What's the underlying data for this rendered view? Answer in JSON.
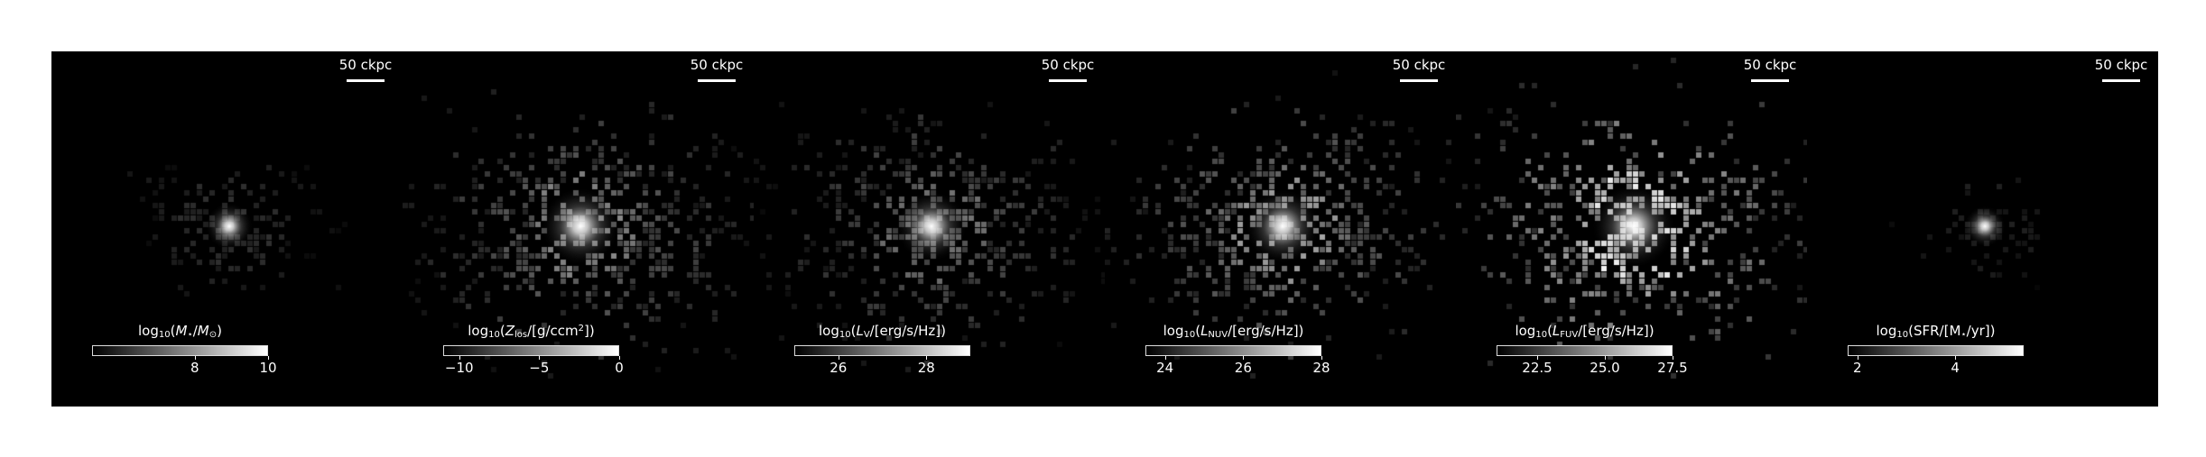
{
  "panels": [
    {
      "scalebar_label": "50 ckpc",
      "colorbar": {
        "label_parts": [
          {
            "t": "log"
          },
          {
            "t": "10",
            "sub": true
          },
          {
            "t": "("
          },
          {
            "t": "M",
            "i": true
          },
          {
            "t": "⋆",
            "sub": true
          },
          {
            "t": "/"
          },
          {
            "t": "M",
            "i": true
          },
          {
            "t": "⊙",
            "sub": true
          },
          {
            "t": ")"
          }
        ],
        "range": [
          5.2,
          10.0
        ],
        "ticks": [
          {
            "value": 8,
            "label": "8"
          },
          {
            "value": 10,
            "label": "10"
          }
        ]
      },
      "image": {
        "core": 1.0,
        "halo_size": 0.38,
        "scatter_count": 160,
        "scatter_spread": 0.34,
        "scatter_brightness": 0.18,
        "seed": 11
      }
    },
    {
      "scalebar_label": "50 ckpc",
      "colorbar": {
        "label_parts": [
          {
            "t": "log"
          },
          {
            "t": "10",
            "sub": true
          },
          {
            "t": "("
          },
          {
            "t": "Z",
            "i": true
          },
          {
            "t": "los",
            "sub": true
          },
          {
            "t": "/[g/ccm"
          },
          {
            "t": "2",
            "sup": true
          },
          {
            "t": "])"
          }
        ],
        "range": [
          -11.0,
          0.0
        ],
        "ticks": [
          {
            "value": -10,
            "label": "−10"
          },
          {
            "value": -5,
            "label": "−5"
          },
          {
            "value": 0,
            "label": "0"
          }
        ]
      },
      "image": {
        "core": 1.0,
        "halo_size": 0.9,
        "scatter_count": 520,
        "scatter_spread": 0.62,
        "scatter_brightness": 0.5,
        "seed": 23
      }
    },
    {
      "scalebar_label": "50 ckpc",
      "colorbar": {
        "label_parts": [
          {
            "t": "log"
          },
          {
            "t": "10",
            "sub": true
          },
          {
            "t": "("
          },
          {
            "t": "L",
            "i": true
          },
          {
            "t": "V",
            "sub": true
          },
          {
            "t": "/[erg/s/Hz])"
          }
        ],
        "range": [
          25.0,
          29.0
        ],
        "ticks": [
          {
            "value": 26,
            "label": "26"
          },
          {
            "value": 28,
            "label": "28"
          }
        ]
      },
      "image": {
        "core": 1.0,
        "halo_size": 0.78,
        "scatter_count": 460,
        "scatter_spread": 0.6,
        "scatter_brightness": 0.42,
        "seed": 37
      }
    },
    {
      "scalebar_label": "50 ckpc",
      "colorbar": {
        "label_parts": [
          {
            "t": "log"
          },
          {
            "t": "10",
            "sub": true
          },
          {
            "t": "("
          },
          {
            "t": "L",
            "i": true
          },
          {
            "t": "NUV",
            "sub": true
          },
          {
            "t": "/[erg/s/Hz])"
          }
        ],
        "range": [
          23.5,
          28.0
        ],
        "ticks": [
          {
            "value": 24,
            "label": "24"
          },
          {
            "value": 26,
            "label": "26"
          },
          {
            "value": 28,
            "label": "28"
          }
        ]
      },
      "image": {
        "core": 1.0,
        "halo_size": 0.85,
        "scatter_count": 500,
        "scatter_spread": 0.6,
        "scatter_brightness": 0.6,
        "seed": 53
      }
    },
    {
      "scalebar_label": "50 ckpc",
      "colorbar": {
        "label_parts": [
          {
            "t": "log"
          },
          {
            "t": "10",
            "sub": true
          },
          {
            "t": "("
          },
          {
            "t": "L",
            "i": true
          },
          {
            "t": "FUV",
            "sub": true
          },
          {
            "t": "/[erg/s/Hz])"
          }
        ],
        "range": [
          21.0,
          27.5
        ],
        "ticks": [
          {
            "value": 22.5,
            "label": "22.5"
          },
          {
            "value": 25.0,
            "label": "25.0"
          },
          {
            "value": 27.5,
            "label": "27.5"
          }
        ]
      },
      "image": {
        "core": 1.0,
        "halo_size": 1.0,
        "scatter_count": 520,
        "scatter_spread": 0.62,
        "scatter_brightness": 0.92,
        "seed": 71
      }
    },
    {
      "scalebar_label": "50 ckpc",
      "colorbar": {
        "label_parts": [
          {
            "t": "log"
          },
          {
            "t": "10",
            "sub": true
          },
          {
            "t": "(SFR/[M"
          },
          {
            "t": "⋆",
            "sub": true
          },
          {
            "t": "/yr])"
          }
        ],
        "range": [
          1.8,
          5.4
        ],
        "ticks": [
          {
            "value": 2,
            "label": "2"
          },
          {
            "value": 4,
            "label": "4"
          }
        ]
      },
      "image": {
        "core": 1.0,
        "halo_size": 0.28,
        "scatter_count": 70,
        "scatter_spread": 0.24,
        "scatter_brightness": 0.12,
        "seed": 97
      }
    }
  ]
}
